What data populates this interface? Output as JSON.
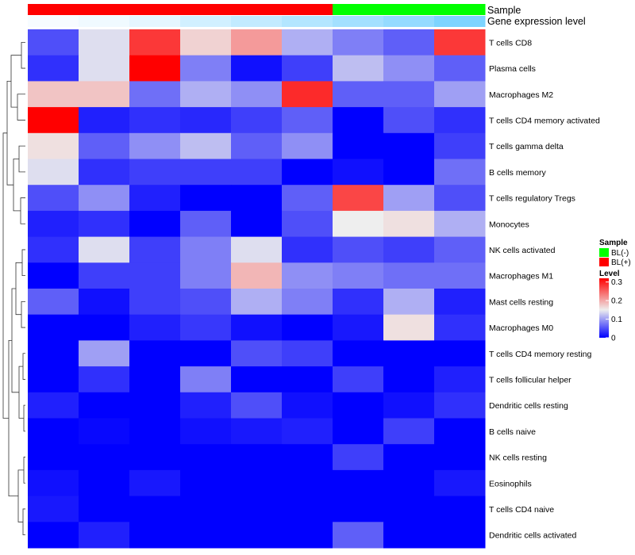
{
  "chart_data": {
    "type": "heatmap",
    "annotation_labels": {
      "sample": "Sample",
      "gene_expression": "Gene expression level"
    },
    "rows": [
      "T cells CD8",
      "Plasma cells",
      "Macrophages M2",
      "T cells CD4 memory activated",
      "T cells gamma delta",
      "B cells memory",
      "T cells regulatory  Tregs",
      "Monocytes",
      "NK cells activated",
      "Macrophages M1",
      "Mast cells resting",
      "Macrophages M0",
      "T cells CD4 memory resting",
      "T cells follicular helper",
      "Dendritic cells resting",
      "B cells naive",
      "NK cells resting",
      "Eosinophils",
      "T cells CD4 naive",
      "Dendritic cells activated"
    ],
    "column_samples": [
      "BL(+)",
      "BL(+)",
      "BL(+)",
      "BL(+)",
      "BL(+)",
      "BL(+)",
      "BL(-)",
      "BL(-)",
      "BL(-)"
    ],
    "column_expression_levels": [
      0.95,
      0.9,
      0.83,
      0.7,
      0.6,
      0.5,
      0.4,
      0.3,
      0.15
    ],
    "values": [
      [
        0.05,
        0.14,
        0.28,
        0.17,
        0.21,
        0.11,
        0.08,
        0.06,
        0.28
      ],
      [
        0.03,
        0.14,
        0.32,
        0.08,
        0.01,
        0.04,
        0.12,
        0.09,
        0.06
      ],
      [
        0.18,
        0.18,
        0.07,
        0.11,
        0.09,
        0.29,
        0.06,
        0.06,
        0.1
      ],
      [
        0.32,
        0.02,
        0.03,
        0.025,
        0.04,
        0.06,
        0.0,
        0.05,
        0.03
      ],
      [
        0.16,
        0.06,
        0.09,
        0.12,
        0.06,
        0.09,
        0.0,
        0.0,
        0.04
      ],
      [
        0.14,
        0.03,
        0.04,
        0.04,
        0.04,
        0.0,
        0.01,
        0.0,
        0.07
      ],
      [
        0.05,
        0.09,
        0.02,
        0.0,
        0.0,
        0.06,
        0.27,
        0.1,
        0.05
      ],
      [
        0.02,
        0.03,
        0.0,
        0.06,
        0.0,
        0.05,
        0.15,
        0.16,
        0.11
      ],
      [
        0.03,
        0.14,
        0.04,
        0.08,
        0.14,
        0.03,
        0.05,
        0.04,
        0.06
      ],
      [
        0.0,
        0.04,
        0.04,
        0.08,
        0.19,
        0.09,
        0.08,
        0.07,
        0.07
      ],
      [
        0.06,
        0.01,
        0.04,
        0.05,
        0.11,
        0.08,
        0.03,
        0.11,
        0.02
      ],
      [
        0.0,
        0.0,
        0.02,
        0.035,
        0.01,
        0.0,
        0.015,
        0.16,
        0.03
      ],
      [
        0.0,
        0.1,
        0.0,
        0.0,
        0.05,
        0.04,
        0.0,
        0.0,
        0.0
      ],
      [
        0.0,
        0.03,
        0.0,
        0.08,
        0.0,
        0.0,
        0.04,
        0.0,
        0.02
      ],
      [
        0.02,
        0.0,
        0.0,
        0.02,
        0.05,
        0.01,
        0.0,
        0.01,
        0.03
      ],
      [
        0.0,
        0.005,
        0.0,
        0.01,
        0.015,
        0.02,
        0.0,
        0.04,
        0.0
      ],
      [
        0.0,
        0.0,
        0.0,
        0.0,
        0.0,
        0.0,
        0.04,
        0.0,
        0.0
      ],
      [
        0.01,
        0.0,
        0.015,
        0.0,
        0.0,
        0.0,
        0.0,
        0.0,
        0.015
      ],
      [
        0.015,
        0.0,
        0.0,
        0.0,
        0.0,
        0.0,
        0.0,
        0.0,
        0.0
      ],
      [
        0.0,
        0.02,
        0.0,
        0.0,
        0.0,
        0.0,
        0.06,
        0.0,
        0.0
      ]
    ],
    "color_scale": {
      "min": 0,
      "mid": 0.15,
      "max": 0.32,
      "low": "#0000FF",
      "middle": "#EEEEEE",
      "high": "#FF0000"
    },
    "sample_colors": {
      "BL(-)": "#00FF00",
      "BL(+)": "#FF0000"
    },
    "legend": {
      "sample_title": "Sample",
      "sample_items": [
        "BL(-)",
        "BL(+)"
      ],
      "level_title": "Level",
      "level_ticks": [
        "0.3",
        "0.2",
        "0.1",
        "0"
      ],
      "level_tick_values": [
        0.3,
        0.2,
        0.1,
        0
      ],
      "position": "right"
    }
  }
}
